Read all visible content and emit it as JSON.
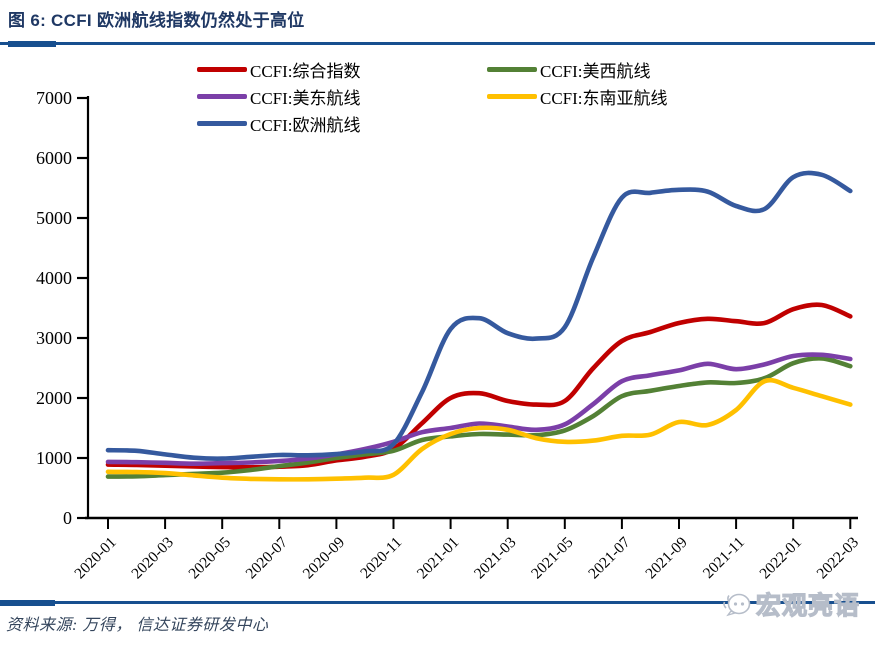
{
  "title": "图 6: CCFI 欧洲航线指数仍然处于高位",
  "source_note": "资料来源: 万得， 信达证券研发中心",
  "watermark_text": "宏观亮语",
  "colors": {
    "rule_navy": "#174F8F",
    "title_navy": "#1F3864",
    "axis_black": "#000000"
  },
  "chart_data": {
    "type": "line",
    "title": "",
    "xlabel": "",
    "ylabel": "",
    "ylim": [
      0,
      7000
    ],
    "y_ticks": [
      0,
      1000,
      2000,
      3000,
      4000,
      5000,
      6000,
      7000
    ],
    "grid": false,
    "legend_position": "top",
    "x": [
      "2020-01",
      "2020-02",
      "2020-03",
      "2020-04",
      "2020-05",
      "2020-06",
      "2020-07",
      "2020-08",
      "2020-09",
      "2020-10",
      "2020-11",
      "2020-12",
      "2021-01",
      "2021-02",
      "2021-03",
      "2021-04",
      "2021-05",
      "2021-06",
      "2021-07",
      "2021-08",
      "2021-09",
      "2021-10",
      "2021-11",
      "2021-12",
      "2022-01",
      "2022-02",
      "2022-03"
    ],
    "x_tick_labels": [
      "2020-01",
      "2020-03",
      "2020-05",
      "2020-07",
      "2020-09",
      "2020-11",
      "2021-01",
      "2021-03",
      "2021-05",
      "2021-07",
      "2021-09",
      "2021-11",
      "2022-01",
      "2022-03"
    ],
    "series": [
      {
        "name": "CCFI:综合指数",
        "color": "#C00000",
        "values": [
          890,
          885,
          872,
          858,
          848,
          845,
          855,
          880,
          960,
          1020,
          1150,
          1580,
          2000,
          2080,
          1950,
          1890,
          1950,
          2500,
          2950,
          3100,
          3250,
          3320,
          3280,
          3250,
          3480,
          3550,
          3360
        ]
      },
      {
        "name": "CCFI:美西航线",
        "color": "#538135",
        "values": [
          690,
          695,
          715,
          735,
          755,
          800,
          865,
          925,
          1000,
          1060,
          1120,
          1300,
          1360,
          1400,
          1390,
          1380,
          1460,
          1700,
          2030,
          2120,
          2200,
          2260,
          2250,
          2330,
          2580,
          2660,
          2530
        ]
      },
      {
        "name": "CCFI:美东航线",
        "color": "#7B3FA8",
        "values": [
          935,
          930,
          920,
          905,
          915,
          925,
          950,
          990,
          1060,
          1150,
          1270,
          1430,
          1500,
          1575,
          1525,
          1470,
          1560,
          1900,
          2280,
          2380,
          2460,
          2570,
          2480,
          2560,
          2700,
          2720,
          2650
        ]
      },
      {
        "name": "CCFI:东南亚航线",
        "color": "#FFC000",
        "values": [
          770,
          765,
          748,
          710,
          672,
          652,
          645,
          645,
          655,
          672,
          720,
          1150,
          1400,
          1500,
          1470,
          1330,
          1270,
          1290,
          1370,
          1390,
          1600,
          1550,
          1800,
          2280,
          2170,
          2030,
          1890
        ]
      },
      {
        "name": "CCFI:欧洲航线",
        "color": "#35599E",
        "values": [
          1130,
          1120,
          1060,
          1005,
          990,
          1020,
          1050,
          1045,
          1065,
          1110,
          1230,
          2100,
          3150,
          3330,
          3080,
          2990,
          3180,
          4350,
          5340,
          5420,
          5470,
          5440,
          5200,
          5150,
          5680,
          5720,
          5450
        ]
      }
    ]
  }
}
